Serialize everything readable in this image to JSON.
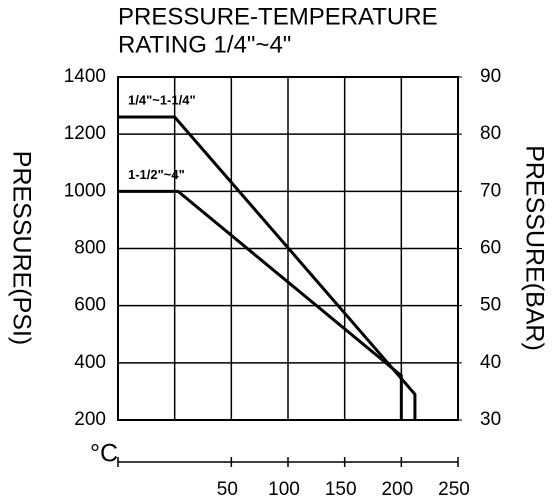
{
  "chart_data": {
    "type": "line",
    "title": [
      "PRESSURE-TEMPERATURE",
      "RATING 1/4\"~4\""
    ],
    "y_label": "PRESSURE(PSI)",
    "y2_label": "PRESSURE(BAR)",
    "x_label": "°C",
    "xlim": [
      -50,
      250
    ],
    "xticks": [
      50,
      100,
      150,
      200,
      250
    ],
    "ylim": [
      200,
      1400
    ],
    "yticks": [
      200,
      400,
      600,
      800,
      1000,
      1200,
      1400
    ],
    "y2lim": [
      30,
      90
    ],
    "y2ticks": [
      30,
      40,
      50,
      60,
      70,
      80,
      90
    ],
    "grid": true,
    "series": [
      {
        "name": "1/4\"~1-1/4\"",
        "color": "#000000",
        "x": [
          -50,
          0,
          212,
          212
        ],
        "values": [
          1260,
          1260,
          290,
          200
        ]
      },
      {
        "name": "1-1/2\"~4\"",
        "color": "#000000",
        "x": [
          -50,
          3,
          200,
          200
        ],
        "values": [
          1000,
          1000,
          355,
          200
        ]
      }
    ]
  }
}
